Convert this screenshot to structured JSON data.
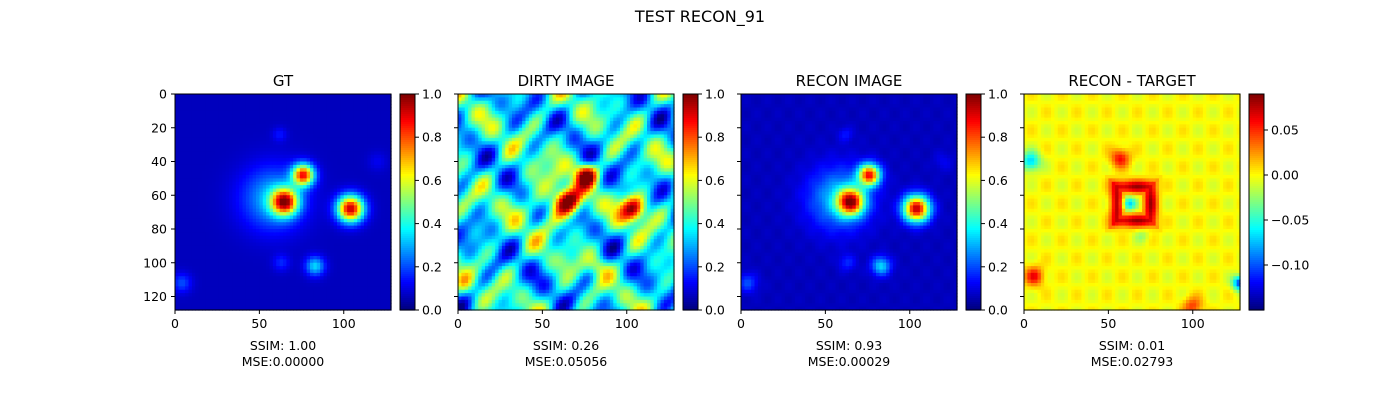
{
  "figure": {
    "title": "TEST RECON_91"
  },
  "chart_data": [
    {
      "type": "heatmap",
      "title": "GT",
      "colormap": "jet",
      "image_size": [
        128,
        128
      ],
      "xticks": [
        0,
        50,
        100
      ],
      "yticks": [
        0,
        20,
        40,
        60,
        80,
        100,
        120
      ],
      "color_range": [
        0.0,
        1.0
      ],
      "colorbar_ticks": [
        "0.0",
        "0.2",
        "0.4",
        "0.6",
        "0.8",
        "1.0"
      ],
      "colorbar_tick_values": [
        0.0,
        0.2,
        0.4,
        0.6,
        0.8,
        1.0
      ],
      "caption": [
        "SSIM: 1.00",
        "MSE:0.00000"
      ]
    },
    {
      "type": "heatmap",
      "title": "DIRTY IMAGE",
      "colormap": "jet",
      "image_size": [
        128,
        128
      ],
      "xticks": [
        0,
        50,
        100
      ],
      "color_range": [
        0.0,
        1.0
      ],
      "colorbar_ticks": [
        "0.0",
        "0.2",
        "0.4",
        "0.6",
        "0.8",
        "1.0"
      ],
      "colorbar_tick_values": [
        0.0,
        0.2,
        0.4,
        0.6,
        0.8,
        1.0
      ],
      "caption": [
        "SSIM: 0.26",
        "MSE:0.05056"
      ]
    },
    {
      "type": "heatmap",
      "title": "RECON IMAGE",
      "colormap": "jet",
      "image_size": [
        128,
        128
      ],
      "xticks": [
        0,
        50,
        100
      ],
      "color_range": [
        0.0,
        1.0
      ],
      "colorbar_ticks": [
        "0.0",
        "0.2",
        "0.4",
        "0.6",
        "0.8",
        "1.0"
      ],
      "colorbar_tick_values": [
        0.0,
        0.2,
        0.4,
        0.6,
        0.8,
        1.0
      ],
      "caption": [
        "SSIM: 0.93",
        "MSE:0.00029"
      ]
    },
    {
      "type": "heatmap",
      "title": "RECON - TARGET",
      "colormap": "jet",
      "image_size": [
        128,
        128
      ],
      "xticks": [
        0,
        50,
        100
      ],
      "color_range": [
        -0.15,
        0.09
      ],
      "colorbar_ticks": [
        "0.05",
        "0.00",
        "−0.05",
        "−0.10"
      ],
      "colorbar_tick_values": [
        0.05,
        0.0,
        -0.05,
        -0.1
      ],
      "caption": [
        "SSIM: 0.01",
        "MSE:0.02793"
      ]
    }
  ]
}
